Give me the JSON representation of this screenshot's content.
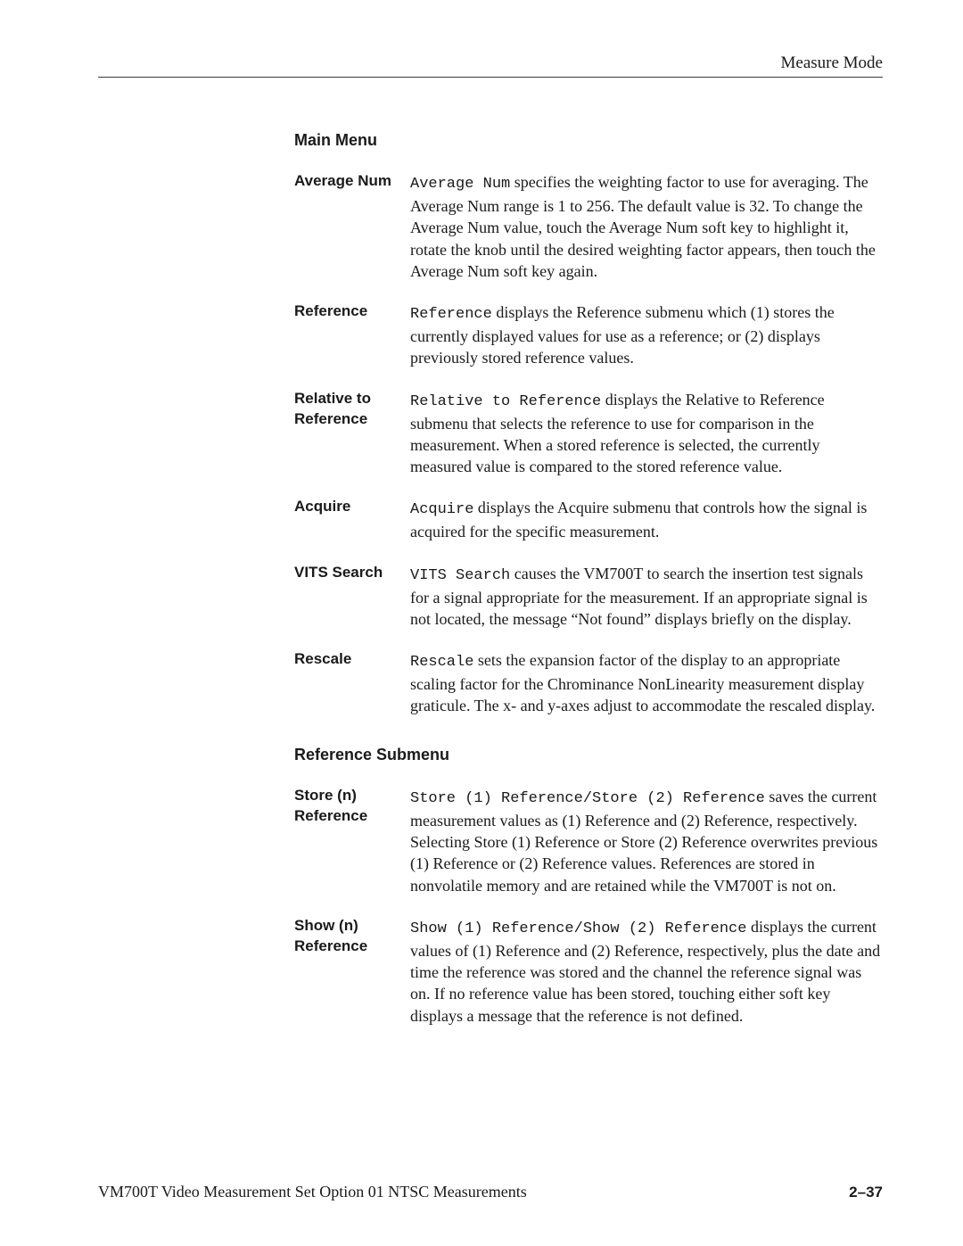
{
  "header": {
    "mode": "Measure Mode"
  },
  "section1": {
    "title": "Main Menu",
    "items": [
      {
        "term": "Average Num",
        "lead": "Average Num",
        "rest": " specifies the weighting factor to use for averaging. The Average Num range is 1 to 256. The default value is 32. To change the Average Num value, touch the Average Num soft key to highlight it, rotate the knob until the desired weighting factor appears, then touch the Average Num soft key again."
      },
      {
        "term": "Reference",
        "lead": "Reference",
        "rest": " displays the Reference submenu which (1) stores the currently displayed values for use as a reference; or (2) displays previously stored reference values."
      },
      {
        "term": "Relative to Reference",
        "lead": "Relative to Reference",
        "rest": " displays the Relative to Reference submenu that selects the reference to use for comparison in the measurement. When a stored reference is selected, the currently measured value is compared to the stored reference value."
      },
      {
        "term": "Acquire",
        "lead": "Acquire",
        "rest": " displays the Acquire submenu that controls how the signal is acquired for the specific measurement."
      },
      {
        "term": "VITS Search",
        "lead": "VITS Search",
        "rest": " causes the VM700T to search the insertion test signals for a signal appropriate for the measurement. If an appropriate signal is not located, the message “Not found” displays briefly on the display."
      },
      {
        "term": "Rescale",
        "lead": "Rescale",
        "rest": " sets the expansion factor of the display to an appropriate scaling factor for the Chrominance NonLinearity measurement display graticule. The x- and y-axes adjust to accommodate the rescaled display."
      }
    ]
  },
  "section2": {
    "title": "Reference Submenu",
    "items": [
      {
        "term": "Store (n) Reference",
        "lead": "Store (1) Reference/Store (2) Reference",
        "rest": " saves the current measurement values as (1) Reference and (2) Reference, respectively. Selecting Store (1) Reference or Store (2) Reference overwrites previous (1) Reference or (2) Reference values. References are stored in nonvolatile memory and are retained while the VM700T is not on."
      },
      {
        "term": "Show (n) Reference",
        "lead": "Show (1) Reference/Show (2) Reference",
        "rest": " displays the current values of (1) Reference and (2) Reference, respectively, plus the date and time the reference was stored and the channel the reference signal was on. If no reference value has been stored, touching either soft key displays a message that the reference is not defined."
      }
    ]
  },
  "footer": {
    "left": "VM700T Video Measurement Set Option 01 NTSC Measurements",
    "right": "2–37"
  }
}
